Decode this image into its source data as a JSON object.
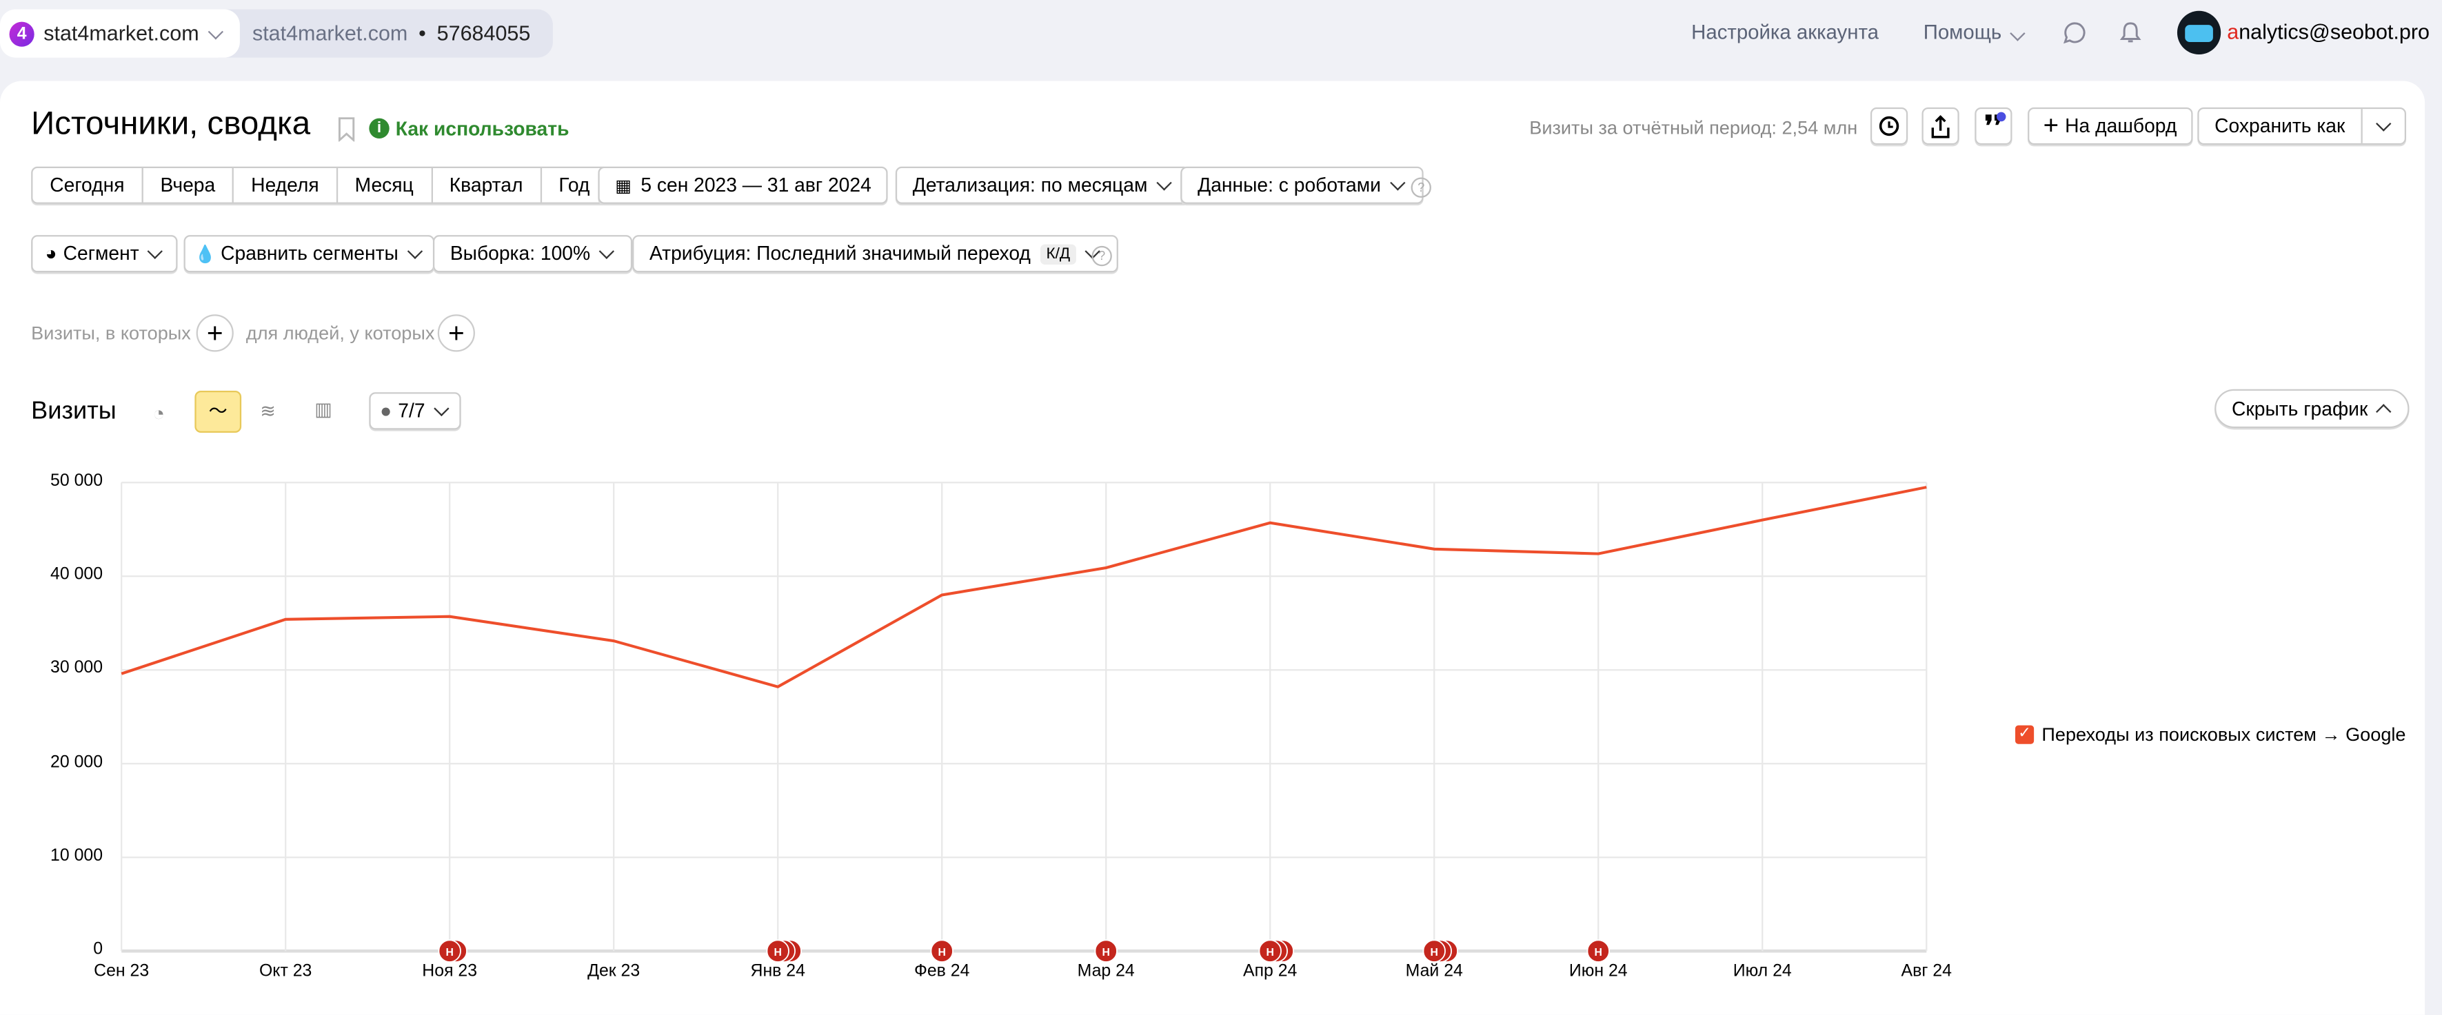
{
  "topbar": {
    "site": "stat4market.com",
    "site_logo": "4",
    "counter_site": "stat4market.com",
    "counter_sep": "•",
    "counter_id": "57684055",
    "account_settings": "Настройка аккаунта",
    "help": "Помощь",
    "user_first": "a",
    "user_rest": "nalytics@seobot.pro"
  },
  "header": {
    "title": "Источники, сводка",
    "how_to": "Как использовать",
    "visits_total": "Визиты за отчётный период: 2,54 млн",
    "to_dashboard": "На дашборд",
    "save_as": "Сохранить как"
  },
  "periods": [
    "Сегодня",
    "Вчера",
    "Неделя",
    "Месяц",
    "Квартал",
    "Год"
  ],
  "filters": {
    "date_range": "5 сен 2023 — 31 авг 2024",
    "detail": "Детализация: по месяцам",
    "data": "Данные: с роботами",
    "segment": "Сегмент",
    "compare": "Сравнить сегменты",
    "sample": "Выборка: 100%",
    "attribution": "Атрибуция: Последний значимый переход",
    "attribution_badge": "к/д",
    "visits_where": "Визиты, в которых",
    "people_where": "для людей, у которых"
  },
  "chart_header": {
    "title": "Визиты",
    "annotations": "7/7",
    "hide_chart": "Скрыть график"
  },
  "chart_data": {
    "type": "line",
    "title": "Визиты",
    "xlabel": "",
    "ylabel": "",
    "ylim": [
      0,
      50000
    ],
    "grid": true,
    "legend_position": "right",
    "y_ticks": [
      "0",
      "10 000",
      "20 000",
      "30 000",
      "40 000",
      "50 000"
    ],
    "categories": [
      "Сен 23",
      "Окт 23",
      "Ноя 23",
      "Дек 23",
      "Янв 24",
      "Фев 24",
      "Мар 24",
      "Апр 24",
      "Май 24",
      "Июн 24",
      "Июл 24",
      "Авг 24"
    ],
    "series": [
      {
        "name": "Переходы из поисковых систем → Google",
        "color": "#ee4e2b",
        "values": [
          29600,
          35400,
          35700,
          33100,
          28200,
          38000,
          40900,
          45700,
          42900,
          42400,
          46000,
          49500
        ]
      }
    ],
    "annotations": {
      "label": "Н",
      "counts": [
        0,
        0,
        2,
        0,
        3,
        1,
        1,
        3,
        3,
        1,
        0,
        0
      ]
    }
  },
  "colors": {
    "accent": "#ee4e2b",
    "green": "#2f8a2f",
    "note": "#c4261d"
  }
}
